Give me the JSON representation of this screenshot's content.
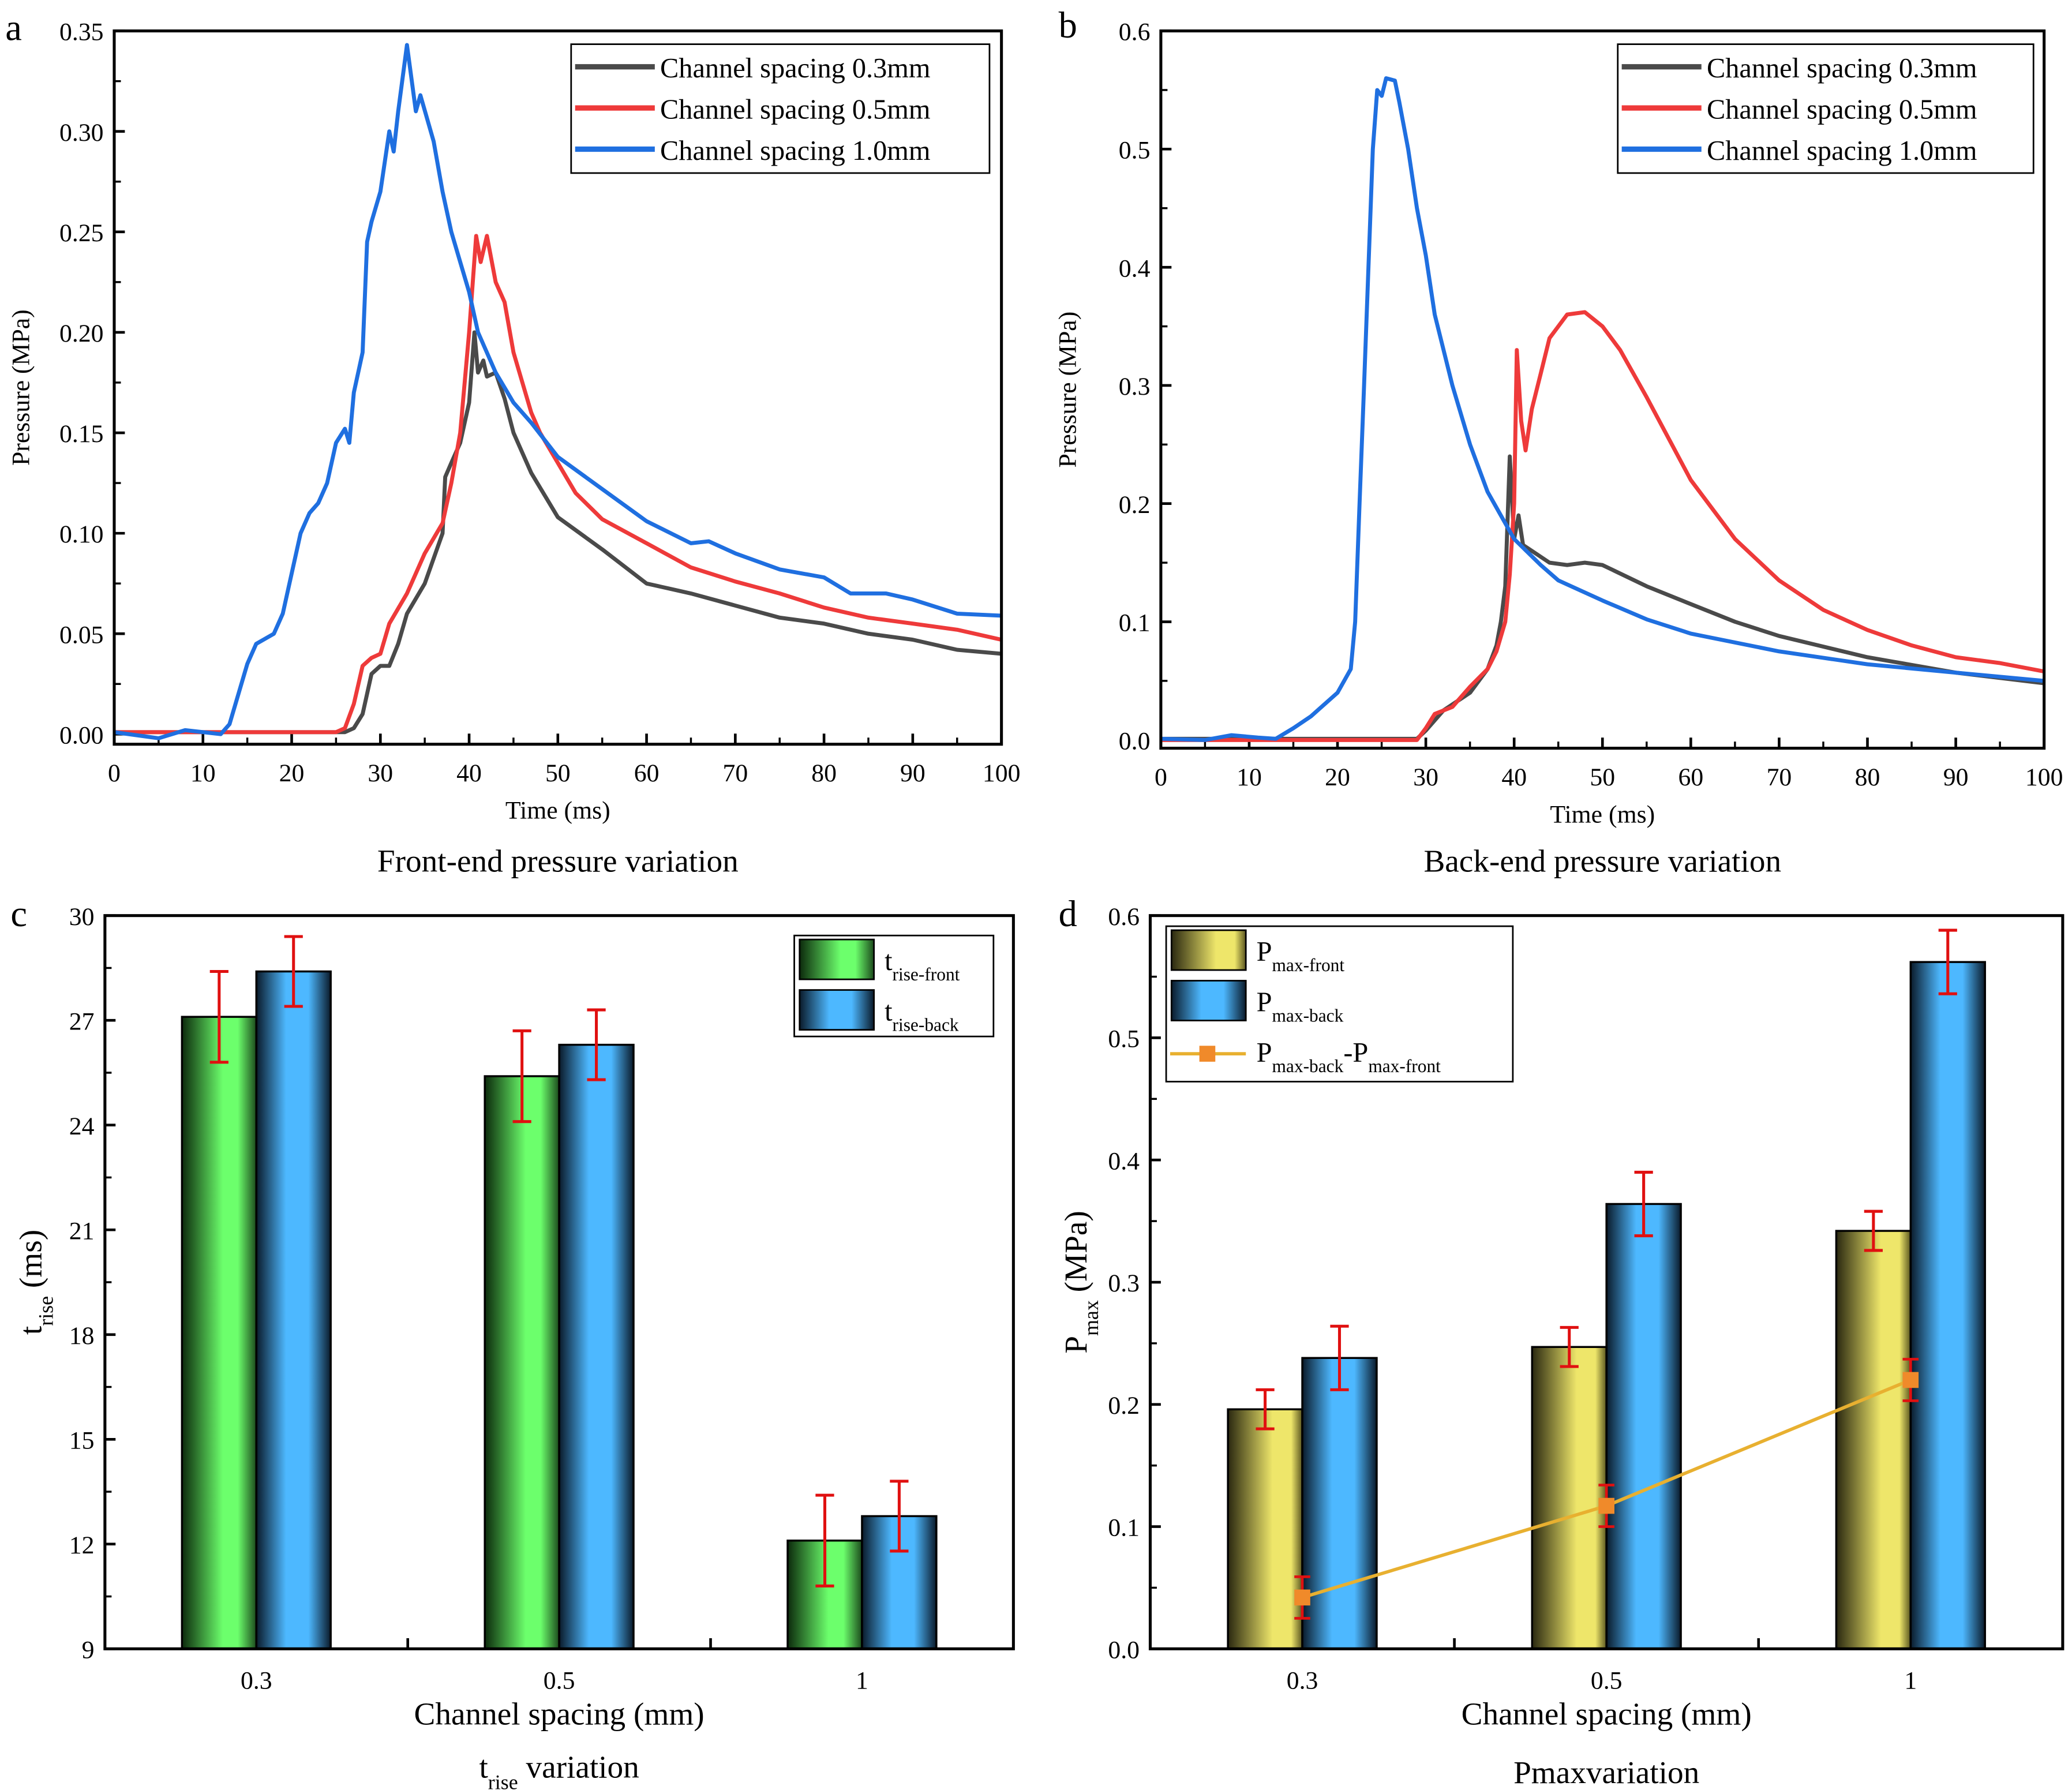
{
  "panel_letters": [
    "a",
    "b",
    "c",
    "d"
  ],
  "chart_data": [
    {
      "type": "line",
      "caption": "Front-end pressure variation",
      "xlabel": "Time (ms)",
      "ylabel": "Pressure (MPa)",
      "xlim": [
        0,
        100
      ],
      "ylim": [
        -0.005,
        0.35
      ],
      "xticks": [
        "0",
        "10",
        "20",
        "30",
        "40",
        "50",
        "60",
        "70",
        "80",
        "90",
        "100"
      ],
      "yticks": [
        "0.00",
        "0.05",
        "0.10",
        "0.15",
        "0.20",
        "0.25",
        "0.30",
        "0.35"
      ],
      "legend_position": "top-right",
      "series": [
        {
          "name": "Channel spacing 0.3mm",
          "color": "#4a4a4a",
          "points": [
            [
              0,
              0.001
            ],
            [
              10,
              0.001
            ],
            [
              20,
              0.001
            ],
            [
              26,
              0.001
            ],
            [
              27,
              0.003
            ],
            [
              28,
              0.01
            ],
            [
              29,
              0.03
            ],
            [
              30,
              0.034
            ],
            [
              31,
              0.034
            ],
            [
              32,
              0.045
            ],
            [
              33,
              0.06
            ],
            [
              35,
              0.075
            ],
            [
              37,
              0.1
            ],
            [
              37.3,
              0.128
            ],
            [
              38,
              0.135
            ],
            [
              39,
              0.145
            ],
            [
              40,
              0.165
            ],
            [
              40.6,
              0.2
            ],
            [
              41,
              0.18
            ],
            [
              41.6,
              0.186
            ],
            [
              42,
              0.178
            ],
            [
              43,
              0.18
            ],
            [
              44,
              0.167
            ],
            [
              45,
              0.15
            ],
            [
              47,
              0.13
            ],
            [
              50,
              0.108
            ],
            [
              55,
              0.092
            ],
            [
              60,
              0.075
            ],
            [
              65,
              0.07
            ],
            [
              70,
              0.064
            ],
            [
              75,
              0.058
            ],
            [
              80,
              0.055
            ],
            [
              85,
              0.05
            ],
            [
              90,
              0.047
            ],
            [
              95,
              0.042
            ],
            [
              100,
              0.04
            ]
          ]
        },
        {
          "name": "Channel spacing 0.5mm",
          "color": "#ee3a3a",
          "points": [
            [
              0,
              0.001
            ],
            [
              25,
              0.001
            ],
            [
              26,
              0.003
            ],
            [
              27,
              0.015
            ],
            [
              28,
              0.034
            ],
            [
              29,
              0.038
            ],
            [
              30,
              0.04
            ],
            [
              31,
              0.055
            ],
            [
              33,
              0.07
            ],
            [
              35,
              0.09
            ],
            [
              37,
              0.105
            ],
            [
              38,
              0.125
            ],
            [
              39,
              0.15
            ],
            [
              40,
              0.2
            ],
            [
              40.8,
              0.248
            ],
            [
              41.3,
              0.235
            ],
            [
              42,
              0.248
            ],
            [
              43,
              0.225
            ],
            [
              44,
              0.215
            ],
            [
              45,
              0.19
            ],
            [
              46,
              0.175
            ],
            [
              47,
              0.16
            ],
            [
              48,
              0.15
            ],
            [
              50,
              0.135
            ],
            [
              52,
              0.12
            ],
            [
              55,
              0.107
            ],
            [
              60,
              0.095
            ],
            [
              65,
              0.083
            ],
            [
              70,
              0.076
            ],
            [
              75,
              0.07
            ],
            [
              80,
              0.063
            ],
            [
              85,
              0.058
            ],
            [
              90,
              0.055
            ],
            [
              95,
              0.052
            ],
            [
              100,
              0.047
            ]
          ]
        },
        {
          "name": "Channel spacing 1.0mm",
          "color": "#1f6fe0",
          "points": [
            [
              0,
              0.001
            ],
            [
              5,
              -0.002
            ],
            [
              8,
              0.002
            ],
            [
              12,
              0
            ],
            [
              13,
              0.005
            ],
            [
              14,
              0.02
            ],
            [
              15,
              0.035
            ],
            [
              16,
              0.045
            ],
            [
              18,
              0.05
            ],
            [
              19,
              0.06
            ],
            [
              20,
              0.08
            ],
            [
              21,
              0.1
            ],
            [
              22,
              0.11
            ],
            [
              23,
              0.115
            ],
            [
              24,
              0.125
            ],
            [
              25,
              0.145
            ],
            [
              26,
              0.152
            ],
            [
              26.5,
              0.145
            ],
            [
              27,
              0.17
            ],
            [
              28,
              0.19
            ],
            [
              28.5,
              0.245
            ],
            [
              29,
              0.255
            ],
            [
              30,
              0.27
            ],
            [
              31,
              0.3
            ],
            [
              31.5,
              0.29
            ],
            [
              32,
              0.31
            ],
            [
              33,
              0.343
            ],
            [
              34,
              0.31
            ],
            [
              34.5,
              0.318
            ],
            [
              36,
              0.295
            ],
            [
              37,
              0.27
            ],
            [
              38,
              0.25
            ],
            [
              39,
              0.235
            ],
            [
              40,
              0.22
            ],
            [
              41,
              0.2
            ],
            [
              43,
              0.18
            ],
            [
              45,
              0.165
            ],
            [
              47,
              0.155
            ],
            [
              50,
              0.138
            ],
            [
              55,
              0.122
            ],
            [
              60,
              0.106
            ],
            [
              65,
              0.095
            ],
            [
              67,
              0.096
            ],
            [
              70,
              0.09
            ],
            [
              75,
              0.082
            ],
            [
              80,
              0.078
            ],
            [
              83,
              0.07
            ],
            [
              87,
              0.07
            ],
            [
              90,
              0.067
            ],
            [
              95,
              0.06
            ],
            [
              100,
              0.059
            ]
          ]
        }
      ]
    },
    {
      "type": "line",
      "caption": "Back-end pressure variation",
      "xlabel": "Time (ms)",
      "ylabel": "Pressure (MPa)",
      "xlim": [
        0,
        100
      ],
      "ylim": [
        -0.007,
        0.6
      ],
      "xticks": [
        "0",
        "10",
        "20",
        "30",
        "40",
        "50",
        "60",
        "70",
        "80",
        "90",
        "100"
      ],
      "yticks": [
        "0.0",
        "0.1",
        "0.2",
        "0.3",
        "0.4",
        "0.5",
        "0.6"
      ],
      "legend_position": "top-right",
      "series": [
        {
          "name": "Channel spacing 0.3mm",
          "color": "#4a4a4a",
          "points": [
            [
              0,
              0.001
            ],
            [
              29,
              0.001
            ],
            [
              30,
              0.008
            ],
            [
              32,
              0.025
            ],
            [
              35,
              0.04
            ],
            [
              37,
              0.06
            ],
            [
              38,
              0.08
            ],
            [
              38.5,
              0.1
            ],
            [
              39,
              0.13
            ],
            [
              39.5,
              0.24
            ],
            [
              40,
              0.17
            ],
            [
              40.5,
              0.19
            ],
            [
              41,
              0.165
            ],
            [
              42,
              0.16
            ],
            [
              44,
              0.15
            ],
            [
              46,
              0.148
            ],
            [
              48,
              0.15
            ],
            [
              50,
              0.148
            ],
            [
              55,
              0.13
            ],
            [
              60,
              0.115
            ],
            [
              65,
              0.1
            ],
            [
              70,
              0.088
            ],
            [
              80,
              0.07
            ],
            [
              90,
              0.057
            ],
            [
              100,
              0.048
            ]
          ]
        },
        {
          "name": "Channel spacing 0.5mm",
          "color": "#ee3a3a",
          "points": [
            [
              0,
              0
            ],
            [
              29,
              0
            ],
            [
              30,
              0.01
            ],
            [
              31,
              0.022
            ],
            [
              33,
              0.028
            ],
            [
              35,
              0.045
            ],
            [
              37,
              0.06
            ],
            [
              38,
              0.075
            ],
            [
              39,
              0.1
            ],
            [
              39.5,
              0.14
            ],
            [
              40,
              0.2
            ],
            [
              40.3,
              0.33
            ],
            [
              40.8,
              0.27
            ],
            [
              41.3,
              0.245
            ],
            [
              42,
              0.28
            ],
            [
              43,
              0.31
            ],
            [
              44,
              0.34
            ],
            [
              46,
              0.36
            ],
            [
              48,
              0.362
            ],
            [
              50,
              0.35
            ],
            [
              52,
              0.33
            ],
            [
              55,
              0.29
            ],
            [
              60,
              0.22
            ],
            [
              65,
              0.17
            ],
            [
              70,
              0.135
            ],
            [
              75,
              0.11
            ],
            [
              80,
              0.093
            ],
            [
              85,
              0.08
            ],
            [
              90,
              0.07
            ],
            [
              95,
              0.065
            ],
            [
              100,
              0.058
            ]
          ]
        },
        {
          "name": "Channel spacing 1.0mm",
          "color": "#1f6fe0",
          "points": [
            [
              0,
              0.001
            ],
            [
              5,
              0
            ],
            [
              8,
              0.004
            ],
            [
              11,
              0.002
            ],
            [
              13,
              0.001
            ],
            [
              15,
              0.01
            ],
            [
              17,
              0.02
            ],
            [
              20,
              0.04
            ],
            [
              21.5,
              0.06
            ],
            [
              22,
              0.1
            ],
            [
              22.5,
              0.2
            ],
            [
              23,
              0.3
            ],
            [
              23.5,
              0.4
            ],
            [
              24,
              0.5
            ],
            [
              24.5,
              0.55
            ],
            [
              25,
              0.545
            ],
            [
              25.5,
              0.56
            ],
            [
              26.5,
              0.558
            ],
            [
              27,
              0.54
            ],
            [
              28,
              0.5
            ],
            [
              29,
              0.45
            ],
            [
              30,
              0.41
            ],
            [
              31,
              0.36
            ],
            [
              33,
              0.3
            ],
            [
              35,
              0.25
            ],
            [
              37,
              0.21
            ],
            [
              40,
              0.17
            ],
            [
              43,
              0.148
            ],
            [
              45,
              0.135
            ],
            [
              50,
              0.118
            ],
            [
              55,
              0.102
            ],
            [
              60,
              0.09
            ],
            [
              70,
              0.075
            ],
            [
              80,
              0.064
            ],
            [
              90,
              0.057
            ],
            [
              100,
              0.05
            ]
          ]
        }
      ]
    },
    {
      "type": "bar",
      "caption": {
        "main": "t",
        "sub": "rise",
        "rest": " variation"
      },
      "xlabel": "Channel spacing (mm)",
      "ylabel": {
        "main": "t",
        "sub": "rise",
        "rest": " (ms)"
      },
      "categories": [
        "0.3",
        "0.5",
        "1"
      ],
      "ylim": [
        9,
        30
      ],
      "yticks": [
        "9",
        "12",
        "15",
        "18",
        "21",
        "24",
        "27",
        "30"
      ],
      "legend_position": "top-right",
      "series": [
        {
          "name": {
            "main": "t",
            "sub": "rise-front"
          },
          "color": "#6cff6c",
          "values": [
            27.1,
            25.4,
            12.1
          ],
          "errors": [
            1.3,
            1.3,
            1.3
          ]
        },
        {
          "name": {
            "main": "t",
            "sub": "rise-back"
          },
          "color": "#4db8ff",
          "values": [
            28.4,
            26.3,
            12.8
          ],
          "errors": [
            1.0,
            1.0,
            1.0
          ]
        }
      ],
      "error_color": "#e01010"
    },
    {
      "type": "bar",
      "caption": "Pmaxvariation",
      "xlabel": "Channel spacing (mm)",
      "ylabel": {
        "main": "P",
        "sub": "max",
        "rest": " (MPa)"
      },
      "categories": [
        "0.3",
        "0.5",
        "1"
      ],
      "ylim": [
        0,
        0.6
      ],
      "yticks": [
        "0.0",
        "0.1",
        "0.2",
        "0.3",
        "0.4",
        "0.5",
        "0.6"
      ],
      "legend_position": "top-left",
      "series": [
        {
          "name": {
            "main": "P",
            "sub": "max-front"
          },
          "color": "#eee66a",
          "values": [
            0.196,
            0.247,
            0.342
          ],
          "errors": [
            0.016,
            0.016,
            0.016
          ]
        },
        {
          "name": {
            "main": "P",
            "sub": "max-back"
          },
          "color": "#4db8ff",
          "values": [
            0.238,
            0.364,
            0.562
          ],
          "errors": [
            0.026,
            0.026,
            0.026
          ]
        }
      ],
      "line_series": {
        "name": {
          "main": "P",
          "sub": "max-back",
          "mid": "-P",
          "sub2": "max-front"
        },
        "color": "#e8b030",
        "marker_color": "#f08a2a",
        "values": [
          0.042,
          0.117,
          0.22
        ],
        "errors": [
          0.017,
          0.017,
          0.017
        ]
      },
      "error_color": "#e01010"
    }
  ]
}
